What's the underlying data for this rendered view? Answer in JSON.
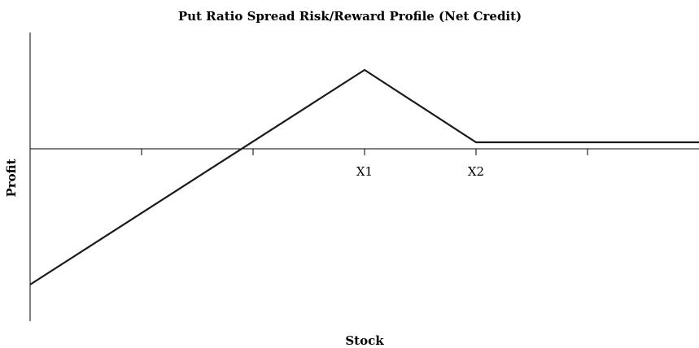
{
  "chart_data": {
    "type": "line",
    "title": "Put Ratio Spread Risk/Reward Profile (Net Credit)",
    "xlabel": "Stock",
    "ylabel": "Profit",
    "x": [
      0,
      3,
      4,
      6
    ],
    "series": [
      {
        "color": "#1a1a1a",
        "values": [
          -16.7,
          9.7,
          0.8,
          0.8
        ]
      }
    ],
    "xlim": [
      0,
      6
    ],
    "ylim": [
      -21.2,
      14.3
    ],
    "xticks": [
      1,
      2,
      {
        "value": 3,
        "label": "X1"
      },
      {
        "value": 4,
        "label": "X2"
      },
      5
    ]
  }
}
